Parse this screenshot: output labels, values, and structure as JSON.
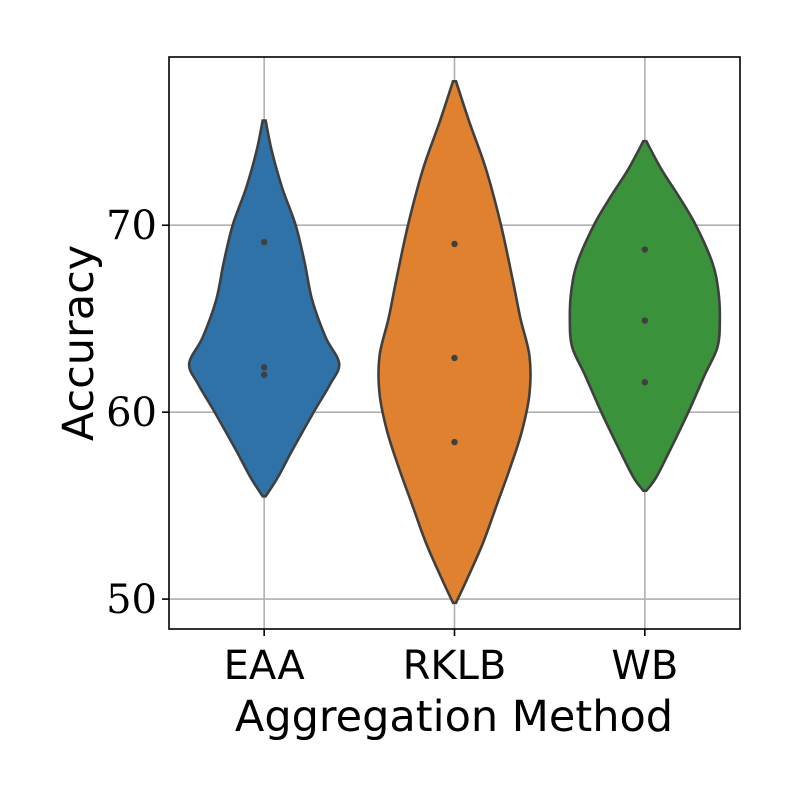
{
  "chart_data": {
    "type": "violin",
    "title": "",
    "xlabel": "Aggregation Method",
    "ylabel": "Accuracy",
    "ylim": [
      48.4,
      79.0
    ],
    "yticks": [
      50,
      60,
      70
    ],
    "grid": true,
    "categories": [
      "EAA",
      "RKLB",
      "WB"
    ],
    "colors": [
      "#2f72a8",
      "#e08130",
      "#3a923a"
    ],
    "violins": [
      {
        "name": "EAA",
        "points": [
          69.1,
          62.4,
          62.0
        ],
        "min": 55.5,
        "max": 75.6,
        "profile": [
          [
            75.6,
            0.02
          ],
          [
            74.0,
            0.1
          ],
          [
            72.0,
            0.24
          ],
          [
            70.0,
            0.42
          ],
          [
            68.0,
            0.54
          ],
          [
            66.0,
            0.64
          ],
          [
            64.0,
            0.82
          ],
          [
            62.6,
            1.0
          ],
          [
            61.5,
            0.88
          ],
          [
            60.0,
            0.66
          ],
          [
            58.0,
            0.38
          ],
          [
            56.5,
            0.18
          ],
          [
            55.5,
            0.02
          ]
        ]
      },
      {
        "name": "RKLB",
        "points": [
          69.0,
          62.9,
          58.4
        ],
        "min": 49.8,
        "max": 77.7,
        "profile": [
          [
            77.7,
            0.02
          ],
          [
            75.5,
            0.2
          ],
          [
            73.0,
            0.42
          ],
          [
            70.0,
            0.62
          ],
          [
            67.0,
            0.78
          ],
          [
            65.0,
            0.88
          ],
          [
            63.0,
            1.0
          ],
          [
            61.0,
            1.0
          ],
          [
            59.0,
            0.9
          ],
          [
            57.0,
            0.74
          ],
          [
            55.0,
            0.56
          ],
          [
            53.0,
            0.38
          ],
          [
            51.0,
            0.16
          ],
          [
            49.8,
            0.02
          ]
        ]
      },
      {
        "name": "WB",
        "points": [
          68.7,
          64.9,
          61.6
        ],
        "min": 55.8,
        "max": 74.5,
        "profile": [
          [
            74.5,
            0.02
          ],
          [
            73.0,
            0.22
          ],
          [
            71.5,
            0.46
          ],
          [
            70.0,
            0.68
          ],
          [
            68.0,
            0.9
          ],
          [
            66.5,
            0.98
          ],
          [
            65.0,
            1.0
          ],
          [
            63.5,
            0.97
          ],
          [
            62.0,
            0.8
          ],
          [
            60.0,
            0.58
          ],
          [
            58.0,
            0.34
          ],
          [
            56.5,
            0.15
          ],
          [
            55.8,
            0.02
          ]
        ]
      }
    ]
  }
}
